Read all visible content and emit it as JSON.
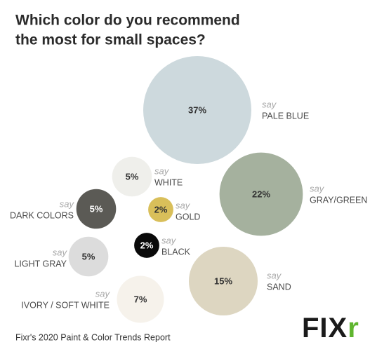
{
  "chart_data": {
    "type": "bubble",
    "title": [
      "Which color do you recommend",
      "the most for small spaces?"
    ],
    "prefix": "say",
    "categories": [
      "PALE BLUE",
      "WHITE",
      "GRAY/GREEN",
      "DARK COLORS",
      "GOLD",
      "BLACK",
      "LIGHT GRAY",
      "SAND",
      "IVORY / SOFT WHITE"
    ],
    "values": [
      37,
      5,
      22,
      5,
      2,
      2,
      5,
      15,
      7
    ],
    "value_labels": [
      "37%",
      "5%",
      "22%",
      "5%",
      "2%",
      "2%",
      "5%",
      "15%",
      "7%"
    ],
    "colors": [
      "#cdd9dd",
      "#efefeb",
      "#a5b19e",
      "#5b5a55",
      "#d9bf5a",
      "#0a0a0a",
      "#dcdcdc",
      "#ddd6c1",
      "#f6f2eb"
    ],
    "source": "Fixr's 2020 Paint & Color Trends Report",
    "logo": {
      "text": "FIX",
      "accent": "r",
      "accent_color": "#5fb52f"
    }
  }
}
